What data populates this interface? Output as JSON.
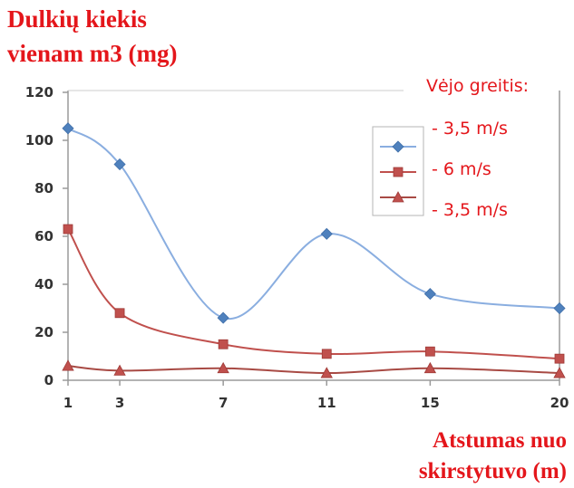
{
  "chart_data": {
    "type": "line",
    "ylabel_lines": [
      "Dulkių kiekis",
      "vienam m3 (mg)"
    ],
    "xlabel_lines": [
      "Atstumas nuo",
      "skirstytuvo (m)"
    ],
    "legend_title": "Vėjo greitis:",
    "x": [
      1,
      3,
      7,
      11,
      15,
      20
    ],
    "x_tick_labels": [
      "1",
      "3",
      "7",
      "11",
      "15",
      "20"
    ],
    "y_ticks": [
      0,
      20,
      40,
      60,
      80,
      100,
      120
    ],
    "y_tick_labels": [
      "0",
      "20",
      "40",
      "60",
      "80",
      "100",
      "120"
    ],
    "ylim": [
      0,
      120
    ],
    "grid": false,
    "legend_position": "right",
    "series": [
      {
        "name": "- 3,5 m/s",
        "marker": "diamond",
        "color": "#8aaee0",
        "marker_color": "#4f81bd",
        "values": [
          105,
          90,
          26,
          61,
          36,
          30
        ]
      },
      {
        "name": "- 6 m/s",
        "marker": "square",
        "color": "#c0504d",
        "marker_color": "#c0504d",
        "values": [
          63,
          28,
          15,
          11,
          12,
          9
        ]
      },
      {
        "name": "- 3,5 m/s",
        "marker": "triangle",
        "color": "#a84a44",
        "marker_color": "#c0504d",
        "values": [
          6,
          4,
          5,
          3,
          5,
          3
        ]
      }
    ]
  }
}
